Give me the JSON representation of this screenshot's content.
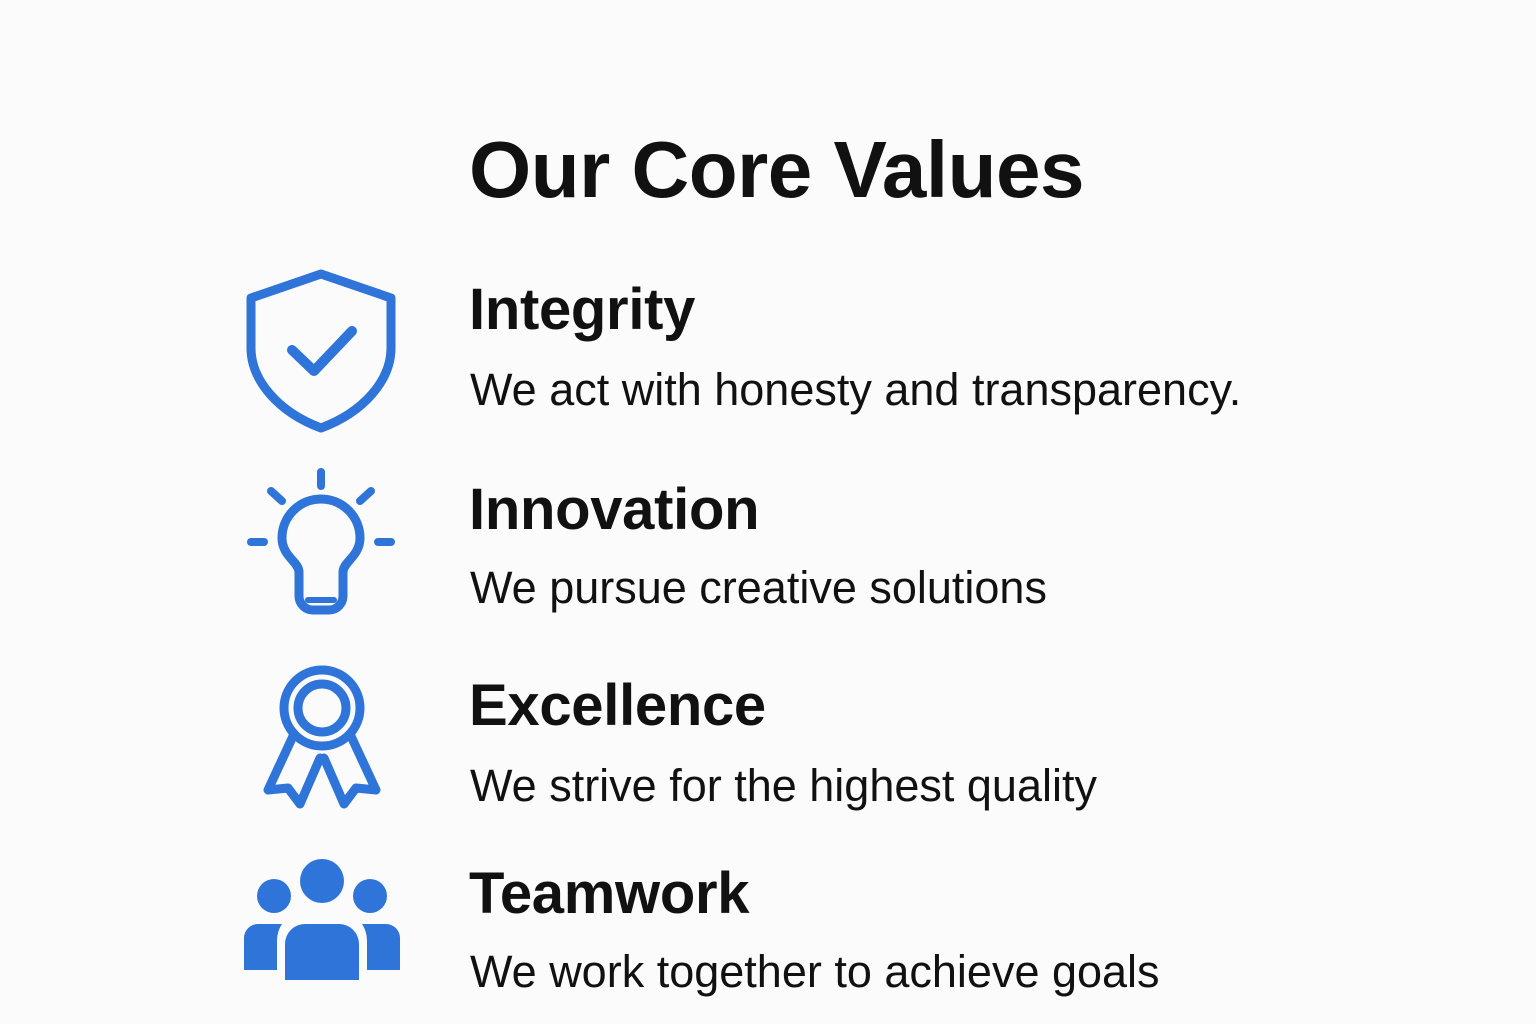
{
  "title": "Our Core Values",
  "accent_color": "#2f74d9",
  "values": [
    {
      "title": "Integrity",
      "description": "We act with honesty and transparency.",
      "icon": "shield-check-icon"
    },
    {
      "title": "Innovation",
      "description": "We pursue creative solutions",
      "icon": "lightbulb-icon"
    },
    {
      "title": "Excellence",
      "description": "We strive for the highest quality",
      "icon": "award-ribbon-icon"
    },
    {
      "title": "Teamwork",
      "description": "We work together to achieve goals",
      "icon": "team-people-icon"
    }
  ]
}
